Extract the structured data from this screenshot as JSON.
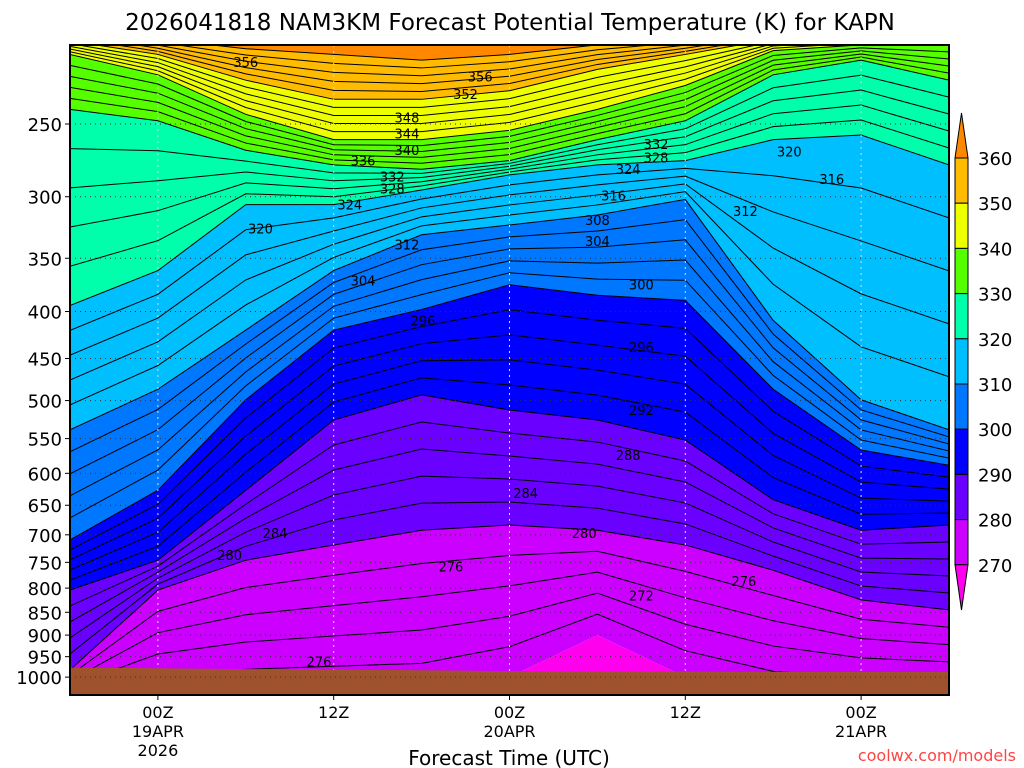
{
  "chart_data": {
    "type": "heatmap",
    "title": "2026041818 NAM3KM Forecast Potential Temperature (K) for KAPN",
    "xlabel": "Forecast Time (UTC)",
    "ylabel": "",
    "watermark": "coolwx.com/models",
    "x_range_hours": [
      0,
      60
    ],
    "y_range_hPa": [
      205,
      1050
    ],
    "y_scale": "log",
    "y_ticks": [
      "250",
      "300",
      "350",
      "400",
      "450",
      "500",
      "550",
      "600",
      "650",
      "700",
      "750",
      "800",
      "850",
      "900",
      "950",
      "1000"
    ],
    "x_ticks": [
      {
        "hour": 6,
        "lines": [
          "00Z",
          "19APR",
          "2026"
        ]
      },
      {
        "hour": 18,
        "lines": [
          "12Z"
        ]
      },
      {
        "hour": 30,
        "lines": [
          "00Z",
          "20APR"
        ]
      },
      {
        "hour": 42,
        "lines": [
          "12Z"
        ]
      },
      {
        "hour": 54,
        "lines": [
          "00Z",
          "21APR"
        ]
      }
    ],
    "grid": true,
    "contour_interval_K": 2,
    "times_hours": [
      0,
      6,
      12,
      18,
      24,
      30,
      36,
      42,
      48,
      54,
      60
    ],
    "isentrope_pressure_hPa": {
      "270": [
        1050,
        1050,
        1050,
        1050,
        1050,
        1000,
        900,
        1000,
        1050,
        1050,
        1050
      ],
      "280": [
        982,
        804,
        746,
        718,
        692,
        683,
        692,
        718,
        765,
        824,
        845
      ],
      "290": [
        804,
        746,
        626,
        525,
        493,
        512,
        525,
        552,
        641,
        692,
        683
      ],
      "300": [
        709,
        626,
        499,
        419,
        398,
        374,
        384,
        389,
        486,
        566,
        588
      ],
      "310": [
        538,
        486,
        419,
        361,
        330,
        322,
        314,
        302,
        409,
        499,
        538
      ],
      "320": [
        394,
        361,
        306,
        306,
        295,
        284,
        277,
        274,
        260,
        257,
        277
      ],
      "330": [
        241,
        248,
        267,
        277,
        280,
        274,
        260,
        248,
        221,
        213,
        224
      ],
      "340": [
        210,
        221,
        244,
        260,
        260,
        254,
        241,
        227,
        208,
        205,
        205
      ],
      "350": [
        203,
        210,
        224,
        235,
        235,
        230,
        218,
        210,
        202,
        200,
        200
      ],
      "360": [
        195,
        202,
        207,
        210,
        213,
        210,
        205,
        202,
        197,
        195,
        195
      ]
    },
    "surface_pressure_hPa": [
      976,
      978,
      980,
      981,
      983,
      985,
      986,
      986,
      987,
      987,
      987
    ],
    "contour_labels": [
      {
        "text": "356",
        "hour": 12.0,
        "p": 214
      },
      {
        "text": "356",
        "hour": 28.0,
        "p": 222
      },
      {
        "text": "352",
        "hour": 27.0,
        "p": 232
      },
      {
        "text": "348",
        "hour": 23.0,
        "p": 246
      },
      {
        "text": "344",
        "hour": 23.0,
        "p": 256
      },
      {
        "text": "340",
        "hour": 23.0,
        "p": 267
      },
      {
        "text": "336",
        "hour": 20.0,
        "p": 274
      },
      {
        "text": "332",
        "hour": 22.0,
        "p": 285
      },
      {
        "text": "328",
        "hour": 22.0,
        "p": 294
      },
      {
        "text": "324",
        "hour": 19.1,
        "p": 306
      },
      {
        "text": "320",
        "hour": 13.0,
        "p": 325
      },
      {
        "text": "312",
        "hour": 23.0,
        "p": 338
      },
      {
        "text": "304",
        "hour": 20.0,
        "p": 370
      },
      {
        "text": "296",
        "hour": 24.1,
        "p": 409
      },
      {
        "text": "300",
        "hour": 39.0,
        "p": 374
      },
      {
        "text": "296",
        "hour": 39.0,
        "p": 437
      },
      {
        "text": "292",
        "hour": 39.0,
        "p": 512
      },
      {
        "text": "288",
        "hour": 38.1,
        "p": 573
      },
      {
        "text": "284",
        "hour": 31.1,
        "p": 630
      },
      {
        "text": "284",
        "hour": 14.0,
        "p": 697
      },
      {
        "text": "280",
        "hour": 10.9,
        "p": 736
      },
      {
        "text": "280",
        "hour": 35.1,
        "p": 697
      },
      {
        "text": "276",
        "hour": 26.0,
        "p": 758
      },
      {
        "text": "276",
        "hour": 46.0,
        "p": 786
      },
      {
        "text": "272",
        "hour": 39.0,
        "p": 815
      },
      {
        "text": "276",
        "hour": 17.0,
        "p": 962
      },
      {
        "text": "332",
        "hour": 40.0,
        "p": 263
      },
      {
        "text": "328",
        "hour": 40.0,
        "p": 272
      },
      {
        "text": "324",
        "hour": 38.1,
        "p": 280
      },
      {
        "text": "316",
        "hour": 37.1,
        "p": 299
      },
      {
        "text": "308",
        "hour": 36.0,
        "p": 318
      },
      {
        "text": "304",
        "hour": 36.0,
        "p": 335
      },
      {
        "text": "320",
        "hour": 49.1,
        "p": 268
      },
      {
        "text": "316",
        "hour": 52.0,
        "p": 287
      },
      {
        "text": "312",
        "hour": 46.1,
        "p": 311
      }
    ],
    "colorbar": {
      "labels": [
        "360",
        "350",
        "340",
        "330",
        "320",
        "310",
        "300",
        "290",
        "280",
        "270"
      ],
      "levels": [
        270,
        280,
        290,
        300,
        310,
        320,
        330,
        340,
        350,
        360
      ],
      "colors": [
        "#ff00ee",
        "#cc00ff",
        "#6a00ff",
        "#0000ff",
        "#0077ff",
        "#00bfff",
        "#00ffaa",
        "#55ff00",
        "#eeff00",
        "#ffbb00",
        "#ff8800"
      ]
    },
    "ground_color": "#a0522d"
  }
}
